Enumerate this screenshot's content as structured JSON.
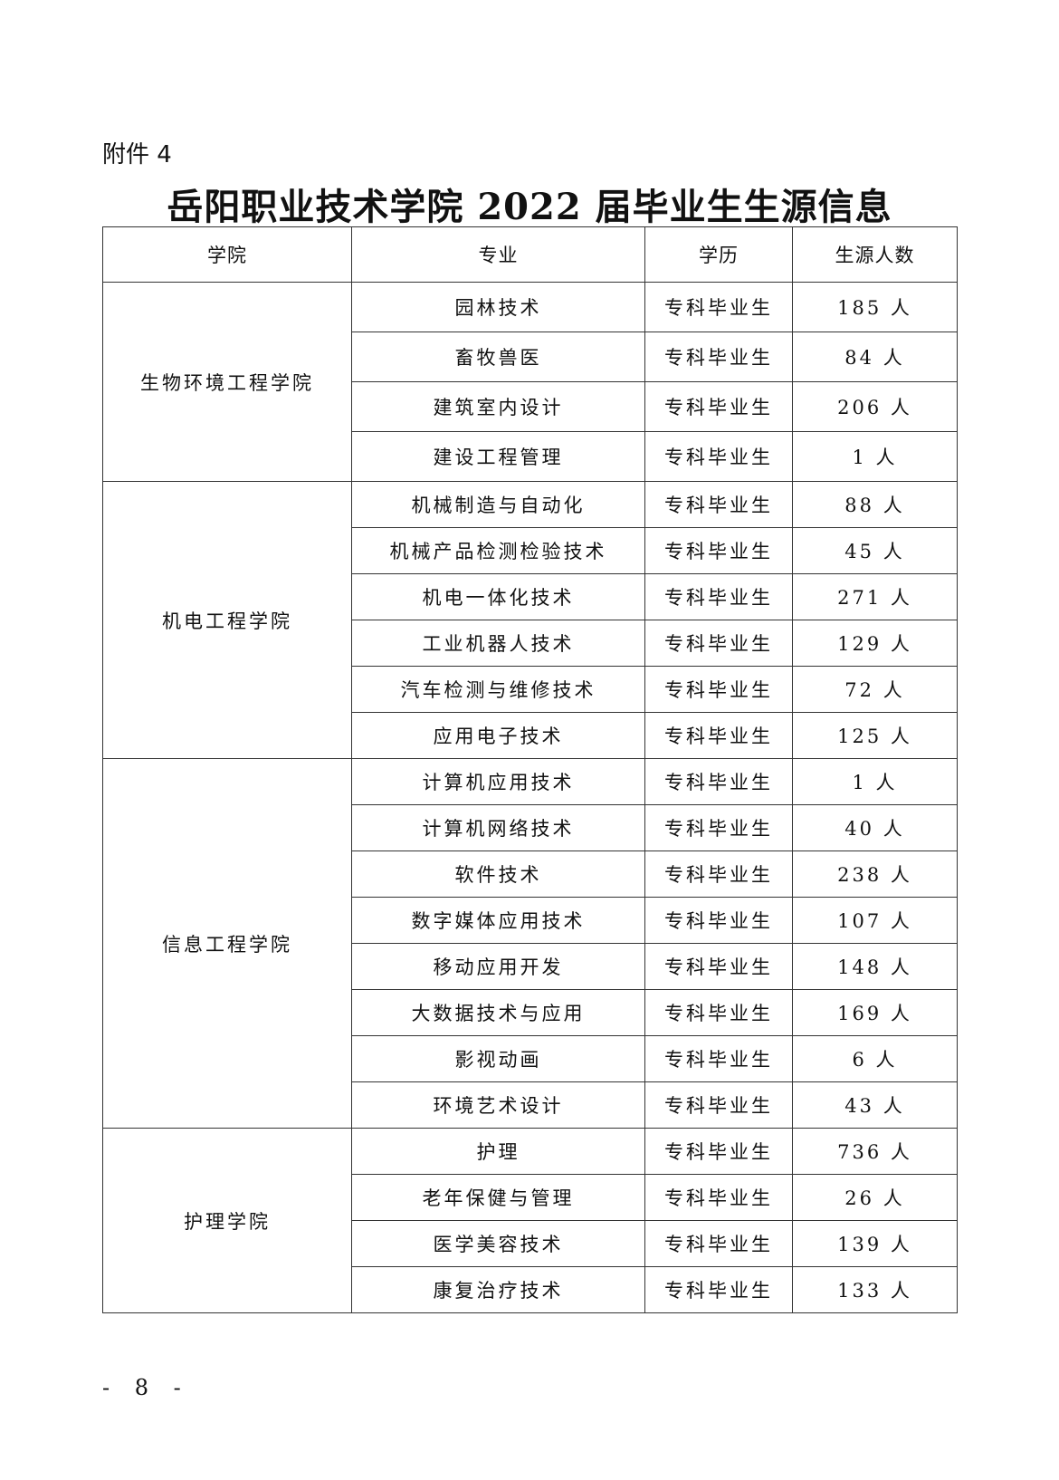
{
  "attachment_label": "附件 4",
  "title": "岳阳职业技术学院 2022 届毕业生生源信息",
  "table": {
    "headers": [
      "学院",
      "专业",
      "学历",
      "生源人数"
    ],
    "groups": [
      {
        "college": "生物环境工程学院",
        "rows": [
          {
            "major": "园林技术",
            "degree": "专科毕业生",
            "count": "185 人"
          },
          {
            "major": "畜牧兽医",
            "degree": "专科毕业生",
            "count": "84 人"
          },
          {
            "major": "建筑室内设计",
            "degree": "专科毕业生",
            "count": "206 人"
          },
          {
            "major": "建设工程管理",
            "degree": "专科毕业生",
            "count": "1 人"
          }
        ]
      },
      {
        "college": "机电工程学院",
        "rows": [
          {
            "major": "机械制造与自动化",
            "degree": "专科毕业生",
            "count": "88 人"
          },
          {
            "major": "机械产品检测检验技术",
            "degree": "专科毕业生",
            "count": "45 人"
          },
          {
            "major": "机电一体化技术",
            "degree": "专科毕业生",
            "count": "271 人"
          },
          {
            "major": "工业机器人技术",
            "degree": "专科毕业生",
            "count": "129 人"
          },
          {
            "major": "汽车检测与维修技术",
            "degree": "专科毕业生",
            "count": "72 人"
          },
          {
            "major": "应用电子技术",
            "degree": "专科毕业生",
            "count": "125 人"
          }
        ]
      },
      {
        "college": "信息工程学院",
        "rows": [
          {
            "major": "计算机应用技术",
            "degree": "专科毕业生",
            "count": "1 人"
          },
          {
            "major": "计算机网络技术",
            "degree": "专科毕业生",
            "count": "40 人"
          },
          {
            "major": "软件技术",
            "degree": "专科毕业生",
            "count": "238 人"
          },
          {
            "major": "数字媒体应用技术",
            "degree": "专科毕业生",
            "count": "107 人"
          },
          {
            "major": "移动应用开发",
            "degree": "专科毕业生",
            "count": "148 人"
          },
          {
            "major": "大数据技术与应用",
            "degree": "专科毕业生",
            "count": "169 人"
          },
          {
            "major": "影视动画",
            "degree": "专科毕业生",
            "count": "6 人"
          },
          {
            "major": "环境艺术设计",
            "degree": "专科毕业生",
            "count": "43 人"
          }
        ]
      },
      {
        "college": "护理学院",
        "rows": [
          {
            "major": "护理",
            "degree": "专科毕业生",
            "count": "736 人"
          },
          {
            "major": "老年保健与管理",
            "degree": "专科毕业生",
            "count": "26 人"
          },
          {
            "major": "医学美容技术",
            "degree": "专科毕业生",
            "count": "139 人"
          },
          {
            "major": "康复治疗技术",
            "degree": "专科毕业生",
            "count": "133 人"
          }
        ]
      }
    ]
  },
  "page_number": "- 8 -"
}
